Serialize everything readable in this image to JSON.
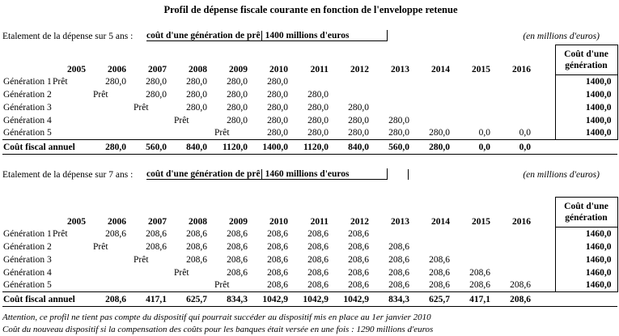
{
  "title": "Profil de dépense fiscale courante en fonction de l'enveloppe retenue",
  "units_note": "(en millions d'euros)",
  "colors": {
    "text": "#000000",
    "background": "#ffffff"
  },
  "years": [
    "2005",
    "2006",
    "2007",
    "2008",
    "2009",
    "2010",
    "2011",
    "2012",
    "2013",
    "2014",
    "2015",
    "2016"
  ],
  "cost_col_header": [
    "Coût d'une",
    "génération"
  ],
  "tables": [
    {
      "intro": "Etalement de la dépense sur 5 ans :",
      "intro_bold": "coût d'une génération de prê",
      "intro_value": "1400 millions d'euros",
      "rows": [
        {
          "label": "Génération 1",
          "cells": [
            "Prêt",
            "280,0",
            "280,0",
            "280,0",
            "280,0",
            "280,0",
            "",
            "",
            "",
            "",
            "",
            ""
          ],
          "total": "1400,0"
        },
        {
          "label": "Génération 2",
          "cells": [
            "",
            "Prêt",
            "280,0",
            "280,0",
            "280,0",
            "280,0",
            "280,0",
            "",
            "",
            "",
            "",
            ""
          ],
          "total": "1400,0"
        },
        {
          "label": "Génération 3",
          "cells": [
            "",
            "",
            "Prêt",
            "280,0",
            "280,0",
            "280,0",
            "280,0",
            "280,0",
            "",
            "",
            "",
            ""
          ],
          "total": "1400,0"
        },
        {
          "label": "Génération 4",
          "cells": [
            "",
            "",
            "",
            "Prêt",
            "280,0",
            "280,0",
            "280,0",
            "280,0",
            "280,0",
            "",
            "",
            ""
          ],
          "total": "1400,0"
        },
        {
          "label": "Génération 5",
          "cells": [
            "",
            "",
            "",
            "",
            "Prêt",
            "280,0",
            "280,0",
            "280,0",
            "280,0",
            "280,0",
            "0,0",
            "0,0"
          ],
          "total": "1400,0"
        }
      ],
      "total_row": {
        "label": "Coût fiscal annuel",
        "cells": [
          "",
          "280,0",
          "560,0",
          "840,0",
          "1120,0",
          "1400,0",
          "1120,0",
          "840,0",
          "560,0",
          "280,0",
          "0,0",
          "0,0"
        ]
      }
    },
    {
      "intro": "Etalement de la dépense sur 7 ans :",
      "intro_bold": "coût d'une génération de prê",
      "intro_value": "1460 millions d'euros",
      "rows": [
        {
          "label": "Génération 1",
          "cells": [
            "Prêt",
            "208,6",
            "208,6",
            "208,6",
            "208,6",
            "208,6",
            "208,6",
            "208,6",
            "",
            "",
            "",
            ""
          ],
          "total": "1460,0"
        },
        {
          "label": "Génération 2",
          "cells": [
            "",
            "Prêt",
            "208,6",
            "208,6",
            "208,6",
            "208,6",
            "208,6",
            "208,6",
            "208,6",
            "",
            "",
            ""
          ],
          "total": "1460,0"
        },
        {
          "label": "Génération 3",
          "cells": [
            "",
            "",
            "Prêt",
            "208,6",
            "208,6",
            "208,6",
            "208,6",
            "208,6",
            "208,6",
            "208,6",
            "",
            ""
          ],
          "total": "1460,0"
        },
        {
          "label": "Génération 4",
          "cells": [
            "",
            "",
            "",
            "Prêt",
            "208,6",
            "208,6",
            "208,6",
            "208,6",
            "208,6",
            "208,6",
            "208,6",
            ""
          ],
          "total": "1460,0"
        },
        {
          "label": "Génération 5",
          "cells": [
            "",
            "",
            "",
            "",
            "Prêt",
            "208,6",
            "208,6",
            "208,6",
            "208,6",
            "208,6",
            "208,6",
            "208,6"
          ],
          "total": "1460,0"
        }
      ],
      "total_row": {
        "label": "Coût fiscal annuel",
        "cells": [
          "",
          "208,6",
          "417,1",
          "625,7",
          "834,3",
          "1042,9",
          "1042,9",
          "1042,9",
          "834,3",
          "625,7",
          "417,1",
          "208,6"
        ]
      }
    }
  ],
  "footnotes": [
    "Attention, ce profil ne tient pas compte du dispositif qui pourrait succéder au dispositif mis en place au 1er janvier 2010",
    "Coût du nouveau dispositif si la compensation des coûts pour les banques était versée en une fois : 1290 millions d'euros"
  ]
}
